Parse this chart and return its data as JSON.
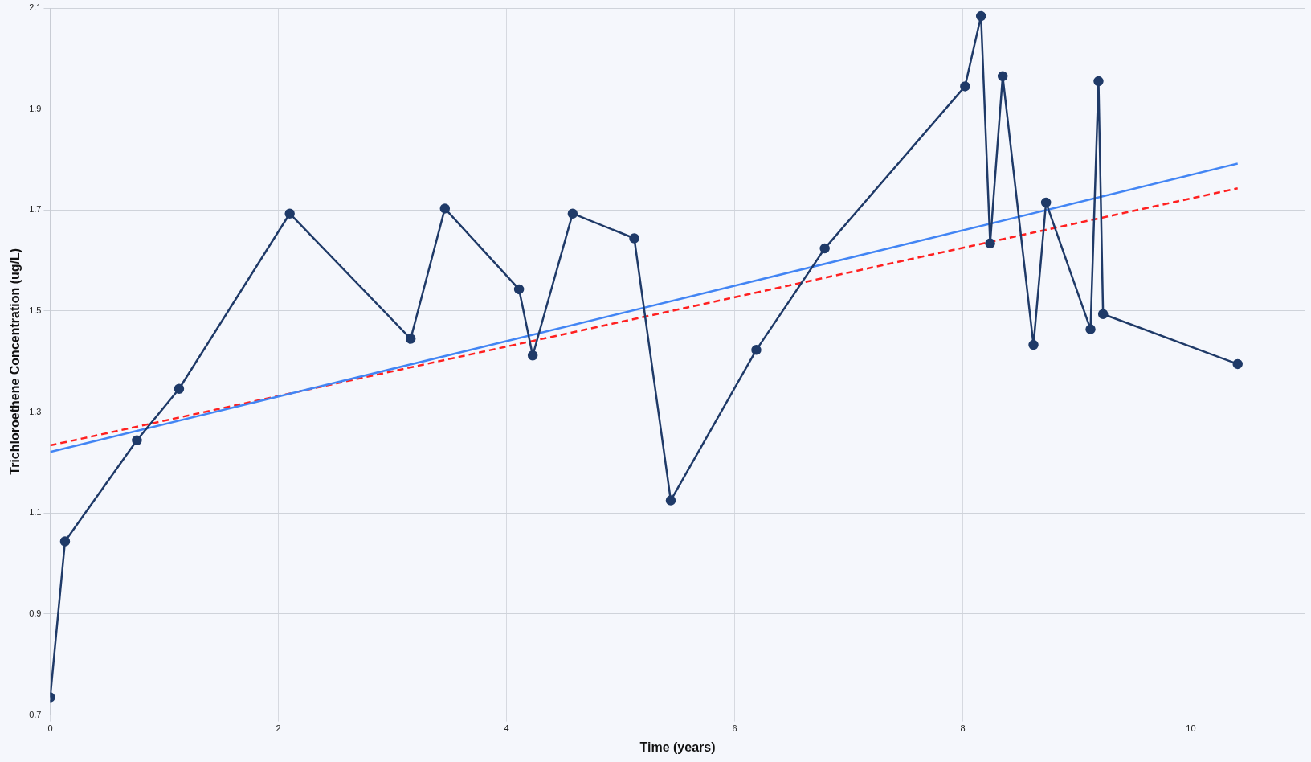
{
  "chart_data": {
    "type": "line",
    "xlabel": "Time (years)",
    "ylabel": "Trichloroethene Concentration (ug/L)",
    "xlim": [
      0,
      11
    ],
    "xticks": [
      0,
      2,
      4,
      6,
      8,
      10
    ],
    "ylim": [
      0.7,
      2.1
    ],
    "yticks": [
      0.7,
      0.9,
      1.1,
      1.3,
      1.5,
      1.7,
      1.9,
      2.1
    ],
    "grid": true,
    "legend": false,
    "marker": "circle",
    "line_style": "solid",
    "series": [
      {
        "color": "#1f3a68",
        "x": [
          0,
          0.13,
          0.76,
          1.13,
          2.1,
          3.16,
          3.46,
          4.11,
          4.23,
          4.58,
          5.12,
          5.44,
          6.19,
          6.79,
          8.02,
          8.16,
          8.24,
          8.35,
          8.62,
          8.73,
          9.12,
          9.19,
          9.23,
          10.41
        ],
        "values": [
          0.735,
          1.044,
          1.244,
          1.346,
          1.693,
          1.445,
          1.703,
          1.543,
          1.412,
          1.693,
          1.644,
          1.125,
          1.423,
          1.624,
          1.945,
          2.084,
          1.634,
          1.965,
          1.433,
          1.715,
          1.464,
          1.955,
          1.494,
          1.395
        ]
      },
      {
        "type": "line",
        "color": "#4285f4",
        "marker": "none",
        "x": [
          0,
          10.41
        ],
        "values": [
          1.221,
          1.792
        ]
      },
      {
        "type": "line",
        "color": "#ff2020",
        "marker": "none",
        "line_style": "dashed",
        "x": [
          0,
          10.41
        ],
        "values": [
          1.234,
          1.743
        ]
      }
    ]
  }
}
